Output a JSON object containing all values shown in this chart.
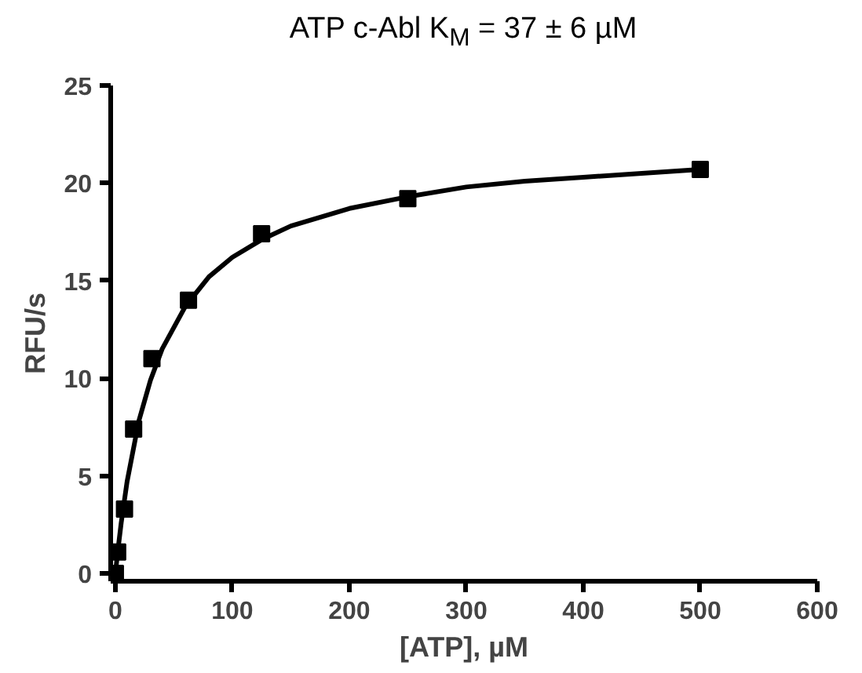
{
  "chart_data": {
    "type": "scatter",
    "title": "ATP c-Abl K$_{M}$ = 37 ± 6 µM",
    "xlabel": "[ATP], µM",
    "ylabel": "RFU/s",
    "xlim": [
      -4,
      600
    ],
    "ylim": [
      -0.4,
      25
    ],
    "xticks": [
      0,
      100,
      200,
      300,
      400,
      500,
      600
    ],
    "yticks": [
      0,
      5,
      10,
      15,
      20,
      25
    ],
    "grid": false,
    "series": [
      {
        "color": "#000000",
        "marker": "square",
        "x": [
          0,
          1.95,
          7.8,
          15.6,
          31.25,
          62.5,
          125,
          250,
          500
        ],
        "values": [
          0,
          1.1,
          3.3,
          7.4,
          11.0,
          14.0,
          17.4,
          19.2,
          20.7
        ]
      },
      {
        "type": "line",
        "color": "#000000",
        "line_style": "solid",
        "x": [
          0,
          2,
          5,
          10,
          20,
          30,
          40,
          60,
          80,
          100,
          125,
          150,
          200,
          250,
          300,
          350,
          400,
          450,
          500
        ],
        "values": [
          0,
          1.1,
          2.6,
          4.7,
          7.8,
          9.9,
          11.5,
          13.7,
          15.2,
          16.2,
          17.1,
          17.8,
          18.7,
          19.3,
          19.8,
          20.1,
          20.3,
          20.5,
          20.7
        ]
      }
    ]
  }
}
